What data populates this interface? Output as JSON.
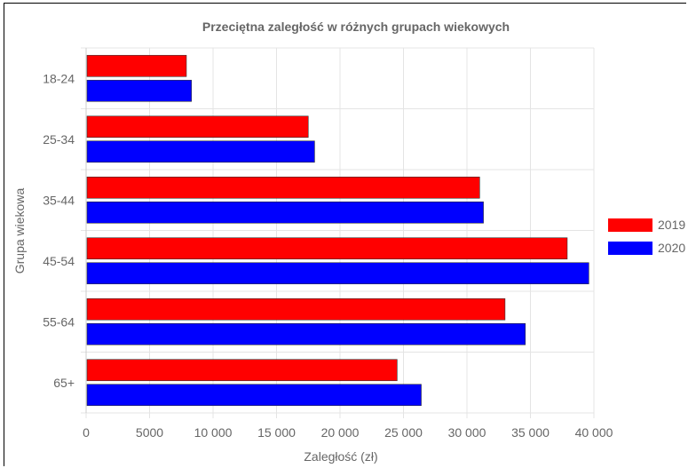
{
  "chart_data": {
    "type": "bar",
    "orientation": "horizontal",
    "title": "Przeciętna zaległość w różnych grupach wiekowych",
    "xlabel": "Zaległość (zł)",
    "ylabel": "Grupa wiekowa",
    "categories": [
      "18-24",
      "25-34",
      "35-44",
      "45-54",
      "55-64",
      "65+"
    ],
    "series": [
      {
        "name": "2019",
        "color": "#ff0000",
        "values": [
          7900,
          17500,
          31000,
          37900,
          33000,
          24500
        ]
      },
      {
        "name": "2020",
        "color": "#0000ff",
        "values": [
          8300,
          18000,
          31300,
          39600,
          34600,
          26400
        ]
      }
    ],
    "xlim": [
      0,
      40000
    ],
    "xticks": [
      0,
      5000,
      10000,
      15000,
      20000,
      25000,
      30000,
      35000,
      40000
    ],
    "xtick_labels": [
      "0",
      "5000",
      "10 000",
      "15 000",
      "20 000",
      "25 000",
      "30 000",
      "35 000",
      "40 000"
    ],
    "grid": true,
    "legend_position": "right"
  }
}
